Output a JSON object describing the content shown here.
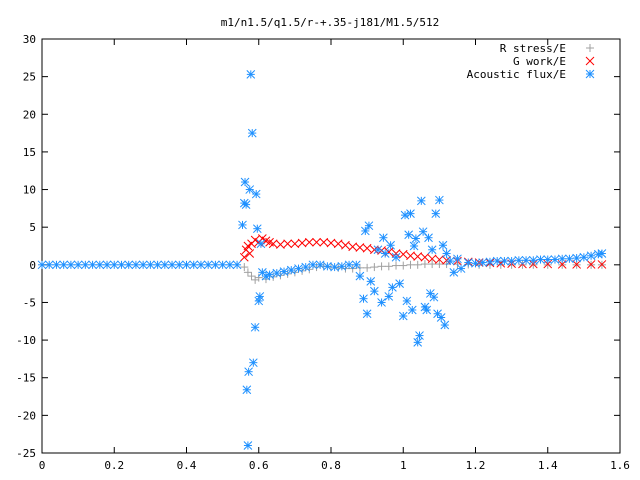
{
  "chart_data": {
    "type": "scatter",
    "title": "m1/n1.5/q1.5/r-+.35-j181/M1.5/512",
    "xlim": [
      0,
      1.6
    ],
    "ylim": [
      -25,
      30
    ],
    "xticks": [
      "0",
      "0.2",
      "0.4",
      "0.6",
      "0.8",
      "1",
      "1.2",
      "1.4",
      "1.6"
    ],
    "yticks": [
      "30",
      "25",
      "20",
      "15",
      "10",
      "5",
      "0",
      "-5",
      "-10",
      "-15",
      "-20",
      "-25"
    ],
    "xtick_values": [
      0,
      0.2,
      0.4,
      0.6,
      0.8,
      1.0,
      1.2,
      1.4,
      1.6
    ],
    "ytick_values": [
      30,
      25,
      20,
      15,
      10,
      5,
      0,
      -5,
      -10,
      -15,
      -20,
      -25
    ],
    "grid": false,
    "legend_position": "top-right",
    "series": [
      {
        "name": "R stress/E",
        "marker": "plus",
        "color": "#a0a0a0",
        "points": [
          [
            0.56,
            -0.3
          ],
          [
            0.57,
            -1.0
          ],
          [
            0.58,
            -1.5
          ],
          [
            0.59,
            -2.0
          ],
          [
            0.6,
            -1.7
          ],
          [
            0.62,
            -1.9
          ],
          [
            0.64,
            -1.6
          ],
          [
            0.66,
            -1.4
          ],
          [
            0.68,
            -1.2
          ],
          [
            0.7,
            -1.0
          ],
          [
            0.72,
            -0.8
          ],
          [
            0.74,
            -0.6
          ],
          [
            0.76,
            -0.3
          ],
          [
            0.78,
            -0.2
          ],
          [
            0.8,
            -0.3
          ],
          [
            0.82,
            -0.4
          ],
          [
            0.84,
            -0.5
          ],
          [
            0.86,
            -0.5
          ],
          [
            0.88,
            -0.4
          ],
          [
            0.9,
            -0.4
          ],
          [
            0.92,
            -0.3
          ],
          [
            0.94,
            -0.2
          ],
          [
            0.96,
            -0.2
          ],
          [
            0.98,
            -0.1
          ],
          [
            1.0,
            -0.1
          ],
          [
            1.02,
            0.0
          ],
          [
            1.04,
            0.0
          ],
          [
            1.06,
            0.1
          ],
          [
            1.08,
            0.1
          ],
          [
            1.1,
            0.1
          ],
          [
            1.12,
            0.1
          ],
          [
            1.15,
            0.1
          ],
          [
            1.18,
            0.05
          ],
          [
            1.21,
            0.0
          ],
          [
            1.24,
            0.0
          ],
          [
            1.27,
            0.0
          ],
          [
            1.3,
            0.0
          ],
          [
            1.33,
            0.0
          ],
          [
            1.36,
            0.0
          ],
          [
            1.4,
            0.0
          ],
          [
            1.44,
            0.0
          ],
          [
            1.48,
            0.0
          ],
          [
            1.52,
            0.0
          ],
          [
            1.55,
            0.0
          ]
        ]
      },
      {
        "name": "G work/E",
        "marker": "cross",
        "color": "#ff0000",
        "points": [
          [
            0.56,
            1.0
          ],
          [
            0.565,
            2.0
          ],
          [
            0.57,
            2.5
          ],
          [
            0.575,
            1.5
          ],
          [
            0.58,
            2.8
          ],
          [
            0.59,
            3.3
          ],
          [
            0.6,
            3.0
          ],
          [
            0.61,
            3.5
          ],
          [
            0.62,
            3.2
          ],
          [
            0.63,
            3.0
          ],
          [
            0.64,
            2.8
          ],
          [
            0.66,
            2.7
          ],
          [
            0.68,
            2.8
          ],
          [
            0.7,
            2.8
          ],
          [
            0.72,
            2.9
          ],
          [
            0.74,
            3.0
          ],
          [
            0.76,
            3.0
          ],
          [
            0.78,
            3.0
          ],
          [
            0.8,
            2.9
          ],
          [
            0.82,
            2.8
          ],
          [
            0.84,
            2.6
          ],
          [
            0.86,
            2.4
          ],
          [
            0.88,
            2.3
          ],
          [
            0.9,
            2.2
          ],
          [
            0.92,
            2.0
          ],
          [
            0.94,
            1.9
          ],
          [
            0.96,
            1.7
          ],
          [
            0.98,
            1.5
          ],
          [
            1.0,
            1.4
          ],
          [
            1.02,
            1.2
          ],
          [
            1.04,
            1.1
          ],
          [
            1.06,
            1.0
          ],
          [
            1.08,
            0.8
          ],
          [
            1.1,
            0.7
          ],
          [
            1.12,
            0.6
          ],
          [
            1.15,
            0.5
          ],
          [
            1.18,
            0.4
          ],
          [
            1.21,
            0.3
          ],
          [
            1.24,
            0.25
          ],
          [
            1.27,
            0.2
          ],
          [
            1.3,
            0.15
          ],
          [
            1.33,
            0.1
          ],
          [
            1.36,
            0.1
          ],
          [
            1.4,
            0.1
          ],
          [
            1.44,
            0.05
          ],
          [
            1.48,
            0.05
          ],
          [
            1.52,
            0.05
          ],
          [
            1.55,
            0.05
          ]
        ]
      },
      {
        "name": "Acoustic flux/E",
        "marker": "star",
        "color": "#1e90ff",
        "points": [
          [
            0.0,
            0.0
          ],
          [
            0.02,
            0.0
          ],
          [
            0.04,
            0.0
          ],
          [
            0.06,
            0.0
          ],
          [
            0.08,
            0.0
          ],
          [
            0.1,
            0.0
          ],
          [
            0.12,
            0.0
          ],
          [
            0.14,
            0.0
          ],
          [
            0.16,
            0.0
          ],
          [
            0.18,
            0.0
          ],
          [
            0.2,
            0.0
          ],
          [
            0.22,
            0.0
          ],
          [
            0.24,
            0.0
          ],
          [
            0.26,
            0.0
          ],
          [
            0.28,
            0.0
          ],
          [
            0.3,
            0.0
          ],
          [
            0.32,
            0.0
          ],
          [
            0.34,
            0.0
          ],
          [
            0.36,
            0.0
          ],
          [
            0.38,
            0.0
          ],
          [
            0.4,
            0.0
          ],
          [
            0.42,
            0.0
          ],
          [
            0.44,
            0.0
          ],
          [
            0.46,
            0.0
          ],
          [
            0.48,
            0.0
          ],
          [
            0.5,
            0.0
          ],
          [
            0.52,
            0.0
          ],
          [
            0.54,
            0.0
          ],
          [
            0.555,
            5.3
          ],
          [
            0.56,
            8.2
          ],
          [
            0.562,
            11.0
          ],
          [
            0.565,
            8.0
          ],
          [
            0.567,
            -16.6
          ],
          [
            0.57,
            -24.0
          ],
          [
            0.572,
            -14.2
          ],
          [
            0.575,
            10.0
          ],
          [
            0.578,
            25.3
          ],
          [
            0.582,
            17.5
          ],
          [
            0.585,
            -13.0
          ],
          [
            0.59,
            -8.3
          ],
          [
            0.593,
            9.4
          ],
          [
            0.596,
            4.8
          ],
          [
            0.6,
            -4.8
          ],
          [
            0.603,
            -4.2
          ],
          [
            0.606,
            2.8
          ],
          [
            0.61,
            -1.0
          ],
          [
            0.62,
            -1.5
          ],
          [
            0.63,
            -1.3
          ],
          [
            0.65,
            -1.1
          ],
          [
            0.67,
            -0.9
          ],
          [
            0.69,
            -0.7
          ],
          [
            0.71,
            -0.5
          ],
          [
            0.73,
            -0.3
          ],
          [
            0.75,
            0.0
          ],
          [
            0.77,
            0.0
          ],
          [
            0.79,
            -0.2
          ],
          [
            0.81,
            -0.3
          ],
          [
            0.83,
            -0.2
          ],
          [
            0.85,
            0.0
          ],
          [
            0.87,
            0.0
          ],
          [
            0.88,
            -1.5
          ],
          [
            0.89,
            -4.5
          ],
          [
            0.895,
            4.5
          ],
          [
            0.9,
            -6.5
          ],
          [
            0.905,
            5.2
          ],
          [
            0.91,
            -2.2
          ],
          [
            0.92,
            -3.5
          ],
          [
            0.93,
            2.0
          ],
          [
            0.94,
            -5.0
          ],
          [
            0.945,
            3.6
          ],
          [
            0.95,
            1.5
          ],
          [
            0.96,
            -4.2
          ],
          [
            0.965,
            2.6
          ],
          [
            0.97,
            -3.0
          ],
          [
            0.98,
            1.0
          ],
          [
            0.99,
            -2.5
          ],
          [
            1.0,
            -6.8
          ],
          [
            1.005,
            6.6
          ],
          [
            1.01,
            -4.8
          ],
          [
            1.015,
            4.0
          ],
          [
            1.02,
            6.8
          ],
          [
            1.025,
            -6.0
          ],
          [
            1.03,
            2.5
          ],
          [
            1.035,
            3.5
          ],
          [
            1.04,
            -10.3
          ],
          [
            1.045,
            -9.4
          ],
          [
            1.05,
            8.5
          ],
          [
            1.055,
            4.4
          ],
          [
            1.06,
            -5.6
          ],
          [
            1.065,
            -6.0
          ],
          [
            1.07,
            3.6
          ],
          [
            1.075,
            -3.8
          ],
          [
            1.08,
            2.0
          ],
          [
            1.085,
            -4.3
          ],
          [
            1.09,
            6.8
          ],
          [
            1.095,
            -6.5
          ],
          [
            1.1,
            8.6
          ],
          [
            1.105,
            -7.0
          ],
          [
            1.11,
            2.6
          ],
          [
            1.115,
            -8.0
          ],
          [
            1.12,
            1.5
          ],
          [
            1.13,
            0.5
          ],
          [
            1.14,
            -1.0
          ],
          [
            1.15,
            0.8
          ],
          [
            1.16,
            -0.5
          ],
          [
            1.18,
            0.3
          ],
          [
            1.2,
            0.2
          ],
          [
            1.22,
            0.3
          ],
          [
            1.24,
            0.4
          ],
          [
            1.26,
            0.5
          ],
          [
            1.28,
            0.5
          ],
          [
            1.3,
            0.5
          ],
          [
            1.32,
            0.6
          ],
          [
            1.34,
            0.6
          ],
          [
            1.36,
            0.6
          ],
          [
            1.38,
            0.7
          ],
          [
            1.4,
            0.7
          ],
          [
            1.42,
            0.7
          ],
          [
            1.44,
            0.8
          ],
          [
            1.46,
            0.8
          ],
          [
            1.48,
            0.9
          ],
          [
            1.5,
            1.0
          ],
          [
            1.52,
            1.2
          ],
          [
            1.54,
            1.4
          ],
          [
            1.55,
            1.5
          ]
        ]
      }
    ]
  }
}
